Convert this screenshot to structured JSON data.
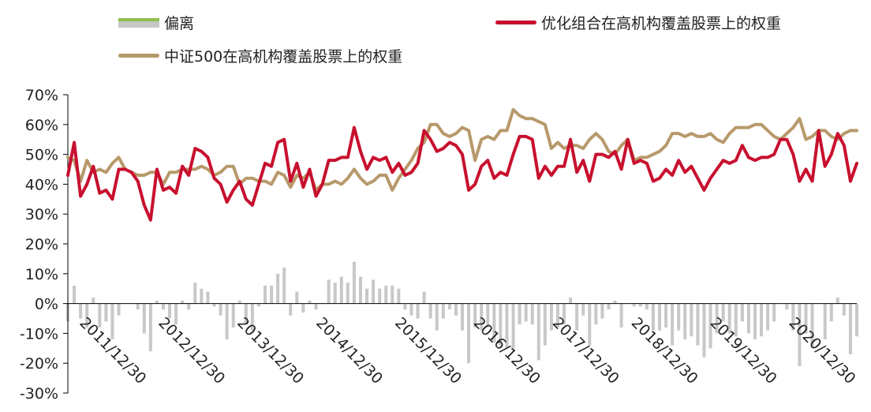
{
  "chart_data": {
    "type": "bar+line",
    "y_unit": "%",
    "ylim": [
      -30,
      70
    ],
    "y_ticks": [
      "70%",
      "60%",
      "50%",
      "40%",
      "30%",
      "20%",
      "10%",
      "0%",
      "-10%",
      "-20%",
      "-30%"
    ],
    "x_tick_labels": [
      "2011/12/30",
      "2012/12/30",
      "2013/12/30",
      "2014/12/30",
      "2015/12/30",
      "2016/12/30",
      "2017/12/30",
      "2018/12/30",
      "2019/12/30",
      "2020/12/30"
    ],
    "legend": {
      "deviation": "偏离",
      "optimized": "优化组合在高机构覆盖股票上的权重",
      "csi500": "中证500在高机构覆盖股票上的权重"
    },
    "series_optimized": [
      43,
      54,
      36,
      40,
      46,
      37,
      38,
      35,
      45,
      45,
      44,
      41,
      33,
      28,
      45,
      38,
      39,
      37,
      46,
      43,
      52,
      51,
      49,
      42,
      40,
      34,
      38,
      41,
      35,
      33,
      40,
      47,
      46,
      54,
      55,
      41,
      47,
      39,
      45,
      36,
      40,
      48,
      48,
      49,
      49,
      59,
      51,
      45,
      49,
      48,
      49,
      44,
      47,
      43,
      44,
      47,
      58,
      55,
      51,
      52,
      54,
      53,
      50,
      38,
      40,
      46,
      48,
      42,
      44,
      43,
      50,
      56,
      56,
      55,
      42,
      46,
      43,
      46,
      46,
      55,
      44,
      48,
      41,
      50,
      50,
      49,
      51,
      45,
      55,
      47,
      48,
      47,
      41,
      42,
      45,
      43,
      48,
      44,
      46,
      42,
      38,
      42,
      45,
      48,
      47,
      48,
      53,
      49,
      48,
      49,
      49,
      50,
      55,
      55,
      50,
      41,
      45,
      41,
      58,
      46,
      50,
      57,
      53,
      41,
      47
    ],
    "series_csi500": [
      49,
      48,
      41,
      48,
      44,
      45,
      44,
      47,
      49,
      45,
      44,
      43,
      43,
      44,
      44,
      40,
      44,
      44,
      45,
      45,
      45,
      46,
      45,
      43,
      44,
      46,
      46,
      40,
      42,
      42,
      41,
      41,
      40,
      44,
      43,
      39,
      43,
      42,
      44,
      38,
      40,
      40,
      41,
      40,
      42,
      45,
      42,
      40,
      41,
      43,
      43,
      38,
      42,
      45,
      48,
      52,
      54,
      60,
      60,
      57,
      56,
      57,
      59,
      58,
      48,
      55,
      56,
      55,
      58,
      58,
      65,
      63,
      62,
      62,
      61,
      60,
      52,
      54,
      52,
      53,
      53,
      52,
      55,
      57,
      55,
      51,
      50,
      53,
      55,
      48,
      49,
      49,
      50,
      51,
      53,
      57,
      57,
      56,
      57,
      56,
      56,
      57,
      55,
      54,
      57,
      59,
      59,
      59,
      60,
      60,
      58,
      56,
      55,
      57,
      59,
      62,
      55,
      56,
      58,
      58,
      56,
      55,
      57,
      58,
      58
    ],
    "series_deviation": [
      -6,
      6,
      -5,
      -8,
      2,
      -8,
      -6,
      -12,
      -4,
      0,
      0,
      -2,
      -10,
      -16,
      1,
      -2,
      -5,
      -7,
      1,
      -2,
      7,
      5,
      4,
      -1,
      -4,
      -12,
      -8,
      1,
      -7,
      -9,
      -1,
      6,
      6,
      10,
      12,
      -4,
      4,
      -3,
      1,
      -2,
      0,
      8,
      7,
      9,
      7,
      14,
      9,
      5,
      8,
      5,
      6,
      6,
      5,
      -2,
      -4,
      -5,
      4,
      -5,
      -9,
      -5,
      -2,
      -4,
      -9,
      -20,
      -8,
      -9,
      -8,
      -13,
      -14,
      -15,
      -15,
      -7,
      -6,
      -7,
      -19,
      -14,
      -9,
      -8,
      -7,
      2,
      -9,
      -4,
      -14,
      -7,
      -5,
      -2,
      1,
      -8,
      0,
      -1,
      -1,
      -2,
      -9,
      -9,
      -8,
      -14,
      -9,
      -12,
      -11,
      -14,
      -18,
      -15,
      -10,
      -6,
      -10,
      -11,
      -6,
      -10,
      -12,
      -11,
      -9,
      -6,
      0,
      -2,
      -9,
      -21,
      -10,
      -15,
      0,
      -12,
      -6,
      2,
      -4,
      -17,
      -11
    ]
  }
}
